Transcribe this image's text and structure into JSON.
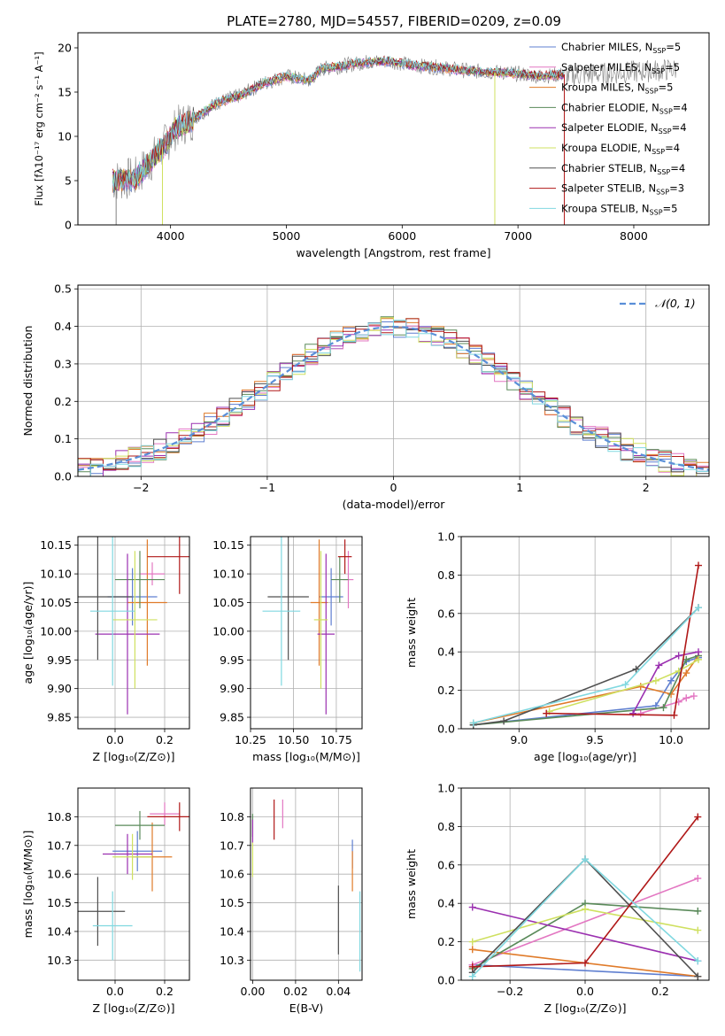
{
  "title": "PLATE=2780, MJD=54557, FIBERID=0209, z=0.09",
  "colors": {
    "grid": "#b0b0b0",
    "chabrier_miles": "#5f7fd0",
    "salpeter_miles": "#e377c2",
    "kroupa_miles": "#e07b2a",
    "chabrier_elodie": "#5a8a5a",
    "salpeter_elodie": "#9b30b0",
    "kroupa_elodie": "#cfe060",
    "chabrier_stelib": "#505050",
    "salpeter_stelib": "#b01818",
    "kroupa_stelib": "#80d8e0",
    "data": "#808080"
  },
  "chart_data": [
    {
      "id": "spectrum",
      "type": "line",
      "xlabel": "wavelength [Angstrom, rest frame]",
      "ylabel": "Flux [fλ10⁻¹⁷ erg cm⁻² s⁻¹ A⁻¹]",
      "xlim": [
        3200,
        8650
      ],
      "ylim": [
        0,
        21.7
      ],
      "xticks": [
        "4000",
        "5000",
        "6000",
        "7000",
        "8000"
      ],
      "yticks": [
        "0",
        "5",
        "10",
        "15",
        "20"
      ],
      "legend": [
        {
          "name": "Chabrier MILES, N",
          "sub": "SSP",
          "n": "=5",
          "color": "#5f7fd0"
        },
        {
          "name": "Salpeter MILES, N",
          "sub": "SSP",
          "n": "=5",
          "color": "#e377c2"
        },
        {
          "name": "Kroupa MILES, N",
          "sub": "SSP",
          "n": "=5",
          "color": "#e07b2a"
        },
        {
          "name": "Chabrier ELODIE, N",
          "sub": "SSP",
          "n": "=4",
          "color": "#5a8a5a"
        },
        {
          "name": "Salpeter ELODIE, N",
          "sub": "SSP",
          "n": "=4",
          "color": "#9b30b0"
        },
        {
          "name": "Kroupa ELODIE, N",
          "sub": "SSP",
          "n": "=4",
          "color": "#cfe060"
        },
        {
          "name": "Chabrier STELIB, N",
          "sub": "SSP",
          "n": "=4",
          "color": "#505050"
        },
        {
          "name": "Salpeter STELIB, N",
          "sub": "SSP",
          "n": "=3",
          "color": "#b01818"
        },
        {
          "name": "Kroupa STELIB, N",
          "sub": "SSP",
          "n": "=5",
          "color": "#80d8e0"
        }
      ],
      "continuum": [
        [
          3500,
          5.0
        ],
        [
          3700,
          5.3
        ],
        [
          3800,
          6.8
        ],
        [
          3950,
          9.0
        ],
        [
          4050,
          11.0
        ],
        [
          4200,
          12.0
        ],
        [
          4400,
          13.8
        ],
        [
          4600,
          14.6
        ],
        [
          4800,
          16.0
        ],
        [
          5000,
          16.8
        ],
        [
          5200,
          16.3
        ],
        [
          5300,
          17.6
        ],
        [
          5500,
          18.0
        ],
        [
          5700,
          18.4
        ],
        [
          5900,
          18.5
        ],
        [
          6100,
          18.0
        ],
        [
          6300,
          17.8
        ],
        [
          6500,
          17.5
        ],
        [
          6700,
          17.3
        ],
        [
          6900,
          17.2
        ],
        [
          7200,
          16.8
        ],
        [
          7400,
          17.0
        ]
      ],
      "model_end": 7400,
      "data_end": 8370,
      "dips": [
        [
          3930,
          0.0
        ],
        [
          6800,
          0.0
        ],
        [
          7400,
          0.0
        ],
        [
          3530,
          0.0
        ]
      ]
    },
    {
      "id": "residuals",
      "type": "line",
      "xlabel": "(data-model)/error",
      "ylabel": "Normed distribution",
      "xlim": [
        -2.5,
        2.5
      ],
      "ylim": [
        0,
        0.51
      ],
      "xticks": [
        "−2",
        "−1",
        "0",
        "1",
        "2"
      ],
      "yticks": [
        "0.0",
        "0.1",
        "0.2",
        "0.3",
        "0.4",
        "0.5"
      ],
      "legend": [
        {
          "name": "𝒩(0, 1)",
          "color": "#5a8fd8"
        }
      ]
    },
    {
      "id": "age_vs_Z",
      "type": "scatter",
      "xlabel": "Z [log₁₀(Z/Z⊙)]",
      "ylabel": "age  [log₁₀(age/yr)]",
      "xlim": [
        -0.15,
        0.3
      ],
      "ylim": [
        9.83,
        10.165
      ],
      "xticks": [
        "0.0",
        "0.2"
      ],
      "yticks": [
        "9.85",
        "9.90",
        "9.95",
        "10.00",
        "10.05",
        "10.10",
        "10.15"
      ],
      "points": [
        {
          "model": "Chabrier MILES",
          "x": 0.07,
          "y": 10.06,
          "ex": 0.1,
          "ey": 0.05
        },
        {
          "model": "Salpeter MILES",
          "x": 0.15,
          "y": 10.1,
          "ex": 0.05,
          "ey": 0.02
        },
        {
          "model": "Kroupa MILES",
          "x": 0.13,
          "y": 10.05,
          "ex": 0.08,
          "ey": 0.11
        },
        {
          "model": "Chabrier ELODIE",
          "x": 0.1,
          "y": 10.09,
          "ex": 0.1,
          "ey": 0.05
        },
        {
          "model": "Salpeter ELODIE",
          "x": 0.05,
          "y": 9.995,
          "ex": 0.13,
          "ey": 0.14
        },
        {
          "model": "Kroupa ELODIE",
          "x": 0.08,
          "y": 10.02,
          "ex": 0.09,
          "ey": 0.12
        },
        {
          "model": "Chabrier STELIB",
          "x": -0.07,
          "y": 10.06,
          "ex": 0.14,
          "ey": 0.11
        },
        {
          "model": "Salpeter STELIB",
          "x": 0.26,
          "y": 10.13,
          "ex": 0.13,
          "ey": 0.065
        },
        {
          "model": "Kroupa STELIB",
          "x": -0.01,
          "y": 10.035,
          "ex": 0.09,
          "ey": 0.13
        }
      ]
    },
    {
      "id": "age_vs_mass",
      "type": "scatter",
      "xlabel": "mass [log₁₀(M/M⊙)]",
      "ylabel": "",
      "xlim": [
        10.25,
        10.9
      ],
      "ylim": [
        9.83,
        10.165
      ],
      "xticks": [
        "10.25",
        "10.50",
        "10.75"
      ],
      "yticks": [
        "9.85",
        "9.90",
        "9.95",
        "10.00",
        "10.05",
        "10.10",
        "10.15"
      ],
      "points": [
        {
          "model": "Chabrier MILES",
          "x": 10.72,
          "y": 10.06,
          "ex": 0.07,
          "ey": 0.05
        },
        {
          "model": "Salpeter MILES",
          "x": 10.82,
          "y": 10.09,
          "ex": 0.03,
          "ey": 0.05
        },
        {
          "model": "Kroupa MILES",
          "x": 10.65,
          "y": 10.05,
          "ex": 0.05,
          "ey": 0.11
        },
        {
          "model": "Chabrier ELODIE",
          "x": 10.77,
          "y": 10.09,
          "ex": 0.05,
          "ey": 0.04
        },
        {
          "model": "Salpeter ELODIE",
          "x": 10.69,
          "y": 9.995,
          "ex": 0.05,
          "ey": 0.14
        },
        {
          "model": "Kroupa ELODIE",
          "x": 10.66,
          "y": 10.02,
          "ex": 0.04,
          "ey": 0.12
        },
        {
          "model": "Chabrier STELIB",
          "x": 10.47,
          "y": 10.06,
          "ex": 0.12,
          "ey": 0.11
        },
        {
          "model": "Salpeter STELIB",
          "x": 10.8,
          "y": 10.13,
          "ex": 0.04,
          "ey": 0.03
        },
        {
          "model": "Kroupa STELIB",
          "x": 10.43,
          "y": 10.035,
          "ex": 0.11,
          "ey": 0.13
        }
      ]
    },
    {
      "id": "mass_weight_vs_age",
      "type": "line",
      "xlabel": "age  [log₁₀(age/yr)]",
      "ylabel": "mass weight",
      "xlim": [
        8.62,
        10.25
      ],
      "ylim": [
        0,
        1.0
      ],
      "xticks": [
        "9.0",
        "9.5",
        "10.0"
      ],
      "yticks": [
        "0.0",
        "0.2",
        "0.4",
        "0.6",
        "0.8",
        "1.0"
      ],
      "series": [
        {
          "model": "Chabrier MILES",
          "points": [
            [
              8.7,
              0.02
            ],
            [
              9.9,
              0.12
            ],
            [
              10.0,
              0.25
            ],
            [
              10.1,
              0.35
            ],
            [
              10.18,
              0.37
            ]
          ]
        },
        {
          "model": "Salpeter MILES",
          "points": [
            [
              9.8,
              0.08
            ],
            [
              10.05,
              0.14
            ],
            [
              10.1,
              0.16
            ],
            [
              10.15,
              0.17
            ]
          ]
        },
        {
          "model": "Kroupa MILES",
          "points": [
            [
              8.7,
              0.03
            ],
            [
              9.8,
              0.22
            ],
            [
              10.0,
              0.18
            ],
            [
              10.1,
              0.29
            ],
            [
              10.18,
              0.38
            ]
          ]
        },
        {
          "model": "Chabrier ELODIE",
          "points": [
            [
              8.7,
              0.02
            ],
            [
              9.95,
              0.11
            ],
            [
              10.1,
              0.36
            ],
            [
              10.18,
              0.38
            ]
          ]
        },
        {
          "model": "Salpeter ELODIE",
          "points": [
            [
              9.75,
              0.08
            ],
            [
              9.92,
              0.33
            ],
            [
              10.05,
              0.38
            ],
            [
              10.18,
              0.4
            ]
          ]
        },
        {
          "model": "Kroupa ELODIE",
          "points": [
            [
              9.2,
              0.09
            ],
            [
              9.9,
              0.25
            ],
            [
              10.05,
              0.3
            ],
            [
              10.18,
              0.36
            ]
          ]
        },
        {
          "model": "Chabrier STELIB",
          "points": [
            [
              8.7,
              0.02
            ],
            [
              8.9,
              0.04
            ],
            [
              9.77,
              0.31
            ],
            [
              10.18,
              0.63
            ]
          ]
        },
        {
          "model": "Salpeter STELIB",
          "points": [
            [
              9.18,
              0.08
            ],
            [
              10.02,
              0.07
            ],
            [
              10.18,
              0.85
            ]
          ]
        },
        {
          "model": "Kroupa STELIB",
          "points": [
            [
              8.7,
              0.03
            ],
            [
              9.7,
              0.23
            ],
            [
              10.18,
              0.63
            ]
          ]
        }
      ]
    },
    {
      "id": "mass_vs_Z",
      "type": "scatter",
      "xlabel": "Z [log₁₀(Z/Z⊙)]",
      "ylabel": "mass [log₁₀(M/M⊙)]",
      "xlim": [
        -0.15,
        0.3
      ],
      "ylim": [
        10.23,
        10.9
      ],
      "xticks": [
        "0.0",
        "0.2"
      ],
      "yticks": [
        "10.3",
        "10.4",
        "10.5",
        "10.6",
        "10.7",
        "10.8"
      ],
      "points": [
        {
          "model": "Chabrier MILES",
          "x": 0.09,
          "y": 10.68,
          "ex": 0.1,
          "ey": 0.07
        },
        {
          "model": "Salpeter MILES",
          "x": 0.2,
          "y": 10.81,
          "ex": 0.06,
          "ey": 0.04
        },
        {
          "model": "Kroupa MILES",
          "x": 0.15,
          "y": 10.66,
          "ex": 0.08,
          "ey": 0.12
        },
        {
          "model": "Chabrier ELODIE",
          "x": 0.1,
          "y": 10.77,
          "ex": 0.1,
          "ey": 0.05
        },
        {
          "model": "Salpeter ELODIE",
          "x": 0.05,
          "y": 10.67,
          "ex": 0.1,
          "ey": 0.07
        },
        {
          "model": "Kroupa ELODIE",
          "x": 0.07,
          "y": 10.66,
          "ex": 0.08,
          "ey": 0.08
        },
        {
          "model": "Chabrier STELIB",
          "x": -0.07,
          "y": 10.47,
          "ex": 0.11,
          "ey": 0.12
        },
        {
          "model": "Salpeter STELIB",
          "x": 0.26,
          "y": 10.8,
          "ex": 0.13,
          "ey": 0.05
        },
        {
          "model": "Kroupa STELIB",
          "x": -0.01,
          "y": 10.42,
          "ex": 0.08,
          "ey": 0.12
        }
      ]
    },
    {
      "id": "mass_vs_ebv",
      "type": "scatter",
      "xlabel": "E(B-V)",
      "ylabel": "",
      "xlim": [
        -0.001,
        0.051
      ],
      "ylim": [
        10.23,
        10.9
      ],
      "xticks": [
        "0.00",
        "0.02",
        "0.04"
      ],
      "yticks": [
        "10.3",
        "10.4",
        "10.5",
        "10.6",
        "10.7",
        "10.8"
      ],
      "points": [
        {
          "model": "Chabrier MILES",
          "x": 0.0465,
          "y": 10.67,
          "ey": 0.05
        },
        {
          "model": "Salpeter MILES",
          "x": 0.014,
          "y": 10.81,
          "ey": 0.05
        },
        {
          "model": "Kroupa MILES",
          "x": 0.0465,
          "y": 10.61,
          "ey": 0.07
        },
        {
          "model": "Chabrier ELODIE",
          "x": 0.0,
          "y": 10.77,
          "ey": 0.04
        },
        {
          "model": "Salpeter ELODIE",
          "x": 0.0,
          "y": 10.75,
          "ey": 0.04
        },
        {
          "model": "Kroupa ELODIE",
          "x": 0.0,
          "y": 10.65,
          "ey": 0.06
        },
        {
          "model": "Chabrier STELIB",
          "x": 0.04,
          "y": 10.44,
          "ey": 0.12
        },
        {
          "model": "Salpeter STELIB",
          "x": 0.01,
          "y": 10.79,
          "ey": 0.07
        },
        {
          "model": "Kroupa STELIB",
          "x": 0.05,
          "y": 10.4,
          "ey": 0.14
        }
      ]
    },
    {
      "id": "mass_weight_vs_Z",
      "type": "line",
      "xlabel": "Z [log₁₀(Z/Z⊙)]",
      "ylabel": "mass weight",
      "xlim": [
        -0.33,
        0.33
      ],
      "ylim": [
        0,
        1.0
      ],
      "xticks": [
        "−0.2",
        "0.0",
        "0.2"
      ],
      "yticks": [
        "0.0",
        "0.2",
        "0.4",
        "0.6",
        "0.8",
        "1.0"
      ],
      "series": [
        {
          "model": "Chabrier MILES",
          "points": [
            [
              -0.3,
              0.08
            ],
            [
              0.3,
              0.02
            ]
          ]
        },
        {
          "model": "Salpeter MILES",
          "points": [
            [
              -0.3,
              0.08
            ],
            [
              0.3,
              0.53
            ]
          ]
        },
        {
          "model": "Kroupa MILES",
          "points": [
            [
              -0.3,
              0.16
            ],
            [
              0.3,
              0.02
            ]
          ]
        },
        {
          "model": "Chabrier ELODIE",
          "points": [
            [
              -0.3,
              0.06
            ],
            [
              0.0,
              0.4
            ],
            [
              0.3,
              0.36
            ]
          ]
        },
        {
          "model": "Salpeter ELODIE",
          "points": [
            [
              -0.3,
              0.38
            ],
            [
              0.3,
              0.1
            ]
          ]
        },
        {
          "model": "Kroupa ELODIE",
          "points": [
            [
              -0.3,
              0.2
            ],
            [
              0.0,
              0.37
            ],
            [
              0.3,
              0.26
            ]
          ]
        },
        {
          "model": "Chabrier STELIB",
          "points": [
            [
              -0.3,
              0.04
            ],
            [
              0.0,
              0.63
            ],
            [
              0.3,
              0.02
            ]
          ]
        },
        {
          "model": "Salpeter STELIB",
          "points": [
            [
              -0.3,
              0.07
            ],
            [
              0.0,
              0.09
            ],
            [
              0.3,
              0.85
            ]
          ]
        },
        {
          "model": "Kroupa STELIB",
          "points": [
            [
              -0.3,
              0.02
            ],
            [
              0.0,
              0.63
            ],
            [
              0.3,
              0.1
            ]
          ]
        }
      ]
    }
  ]
}
